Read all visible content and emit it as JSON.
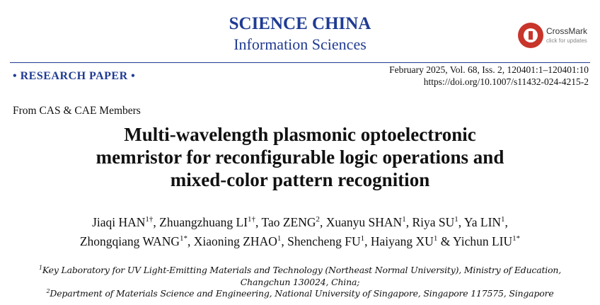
{
  "journal": {
    "name": "SCIENCE CHINA",
    "subtitle": "Information Sciences"
  },
  "crossmark": {
    "label": "CrossMark",
    "sub": "click for updates"
  },
  "section": "• RESEARCH PAPER •",
  "citation": {
    "issue": "February 2025, Vol. 68, Iss. 2, 120401:1–120401:10",
    "doi": "https://doi.org/10.1007/s11432-024-4215-2"
  },
  "category": "From CAS & CAE Members",
  "title": [
    "Multi-wavelength plasmonic optoelectronic",
    "memristor for reconfigurable logic operations and",
    "mixed-color pattern recognition"
  ],
  "author_lines": [
    [
      {
        "name": "Jiaqi HAN",
        "sup": "1†",
        "sep": ","
      },
      {
        "name": "Zhuangzhuang LI",
        "sup": "1†",
        "sep": ","
      },
      {
        "name": "Tao ZENG",
        "sup": "2",
        "sep": ","
      },
      {
        "name": "Xuanyu SHAN",
        "sup": "1",
        "sep": ","
      },
      {
        "name": "Riya SU",
        "sup": "1",
        "sep": ","
      },
      {
        "name": "Ya LIN",
        "sup": "1",
        "sep": ","
      }
    ],
    [
      {
        "name": "Zhongqiang WANG",
        "sup": "1*",
        "sep": ","
      },
      {
        "name": "Xiaoning ZHAO",
        "sup": "1",
        "sep": ","
      },
      {
        "name": "Shencheng FU",
        "sup": "1",
        "sep": ","
      },
      {
        "name": "Haiyang XU",
        "sup": "1",
        "sep": " &"
      },
      {
        "name": "Yichun LIU",
        "sup": "1*"
      }
    ]
  ],
  "affiliations": [
    {
      "mark": "1",
      "lines": [
        "Key Laboratory for UV Light-Emitting Materials and Technology (Northeast Normal University), Ministry of Education,",
        "Changchun 130024, China;"
      ]
    },
    {
      "mark": "2",
      "lines": [
        "Department of Materials Science and Engineering, National University of Singapore, Singapore 117575, Singapore"
      ]
    }
  ]
}
